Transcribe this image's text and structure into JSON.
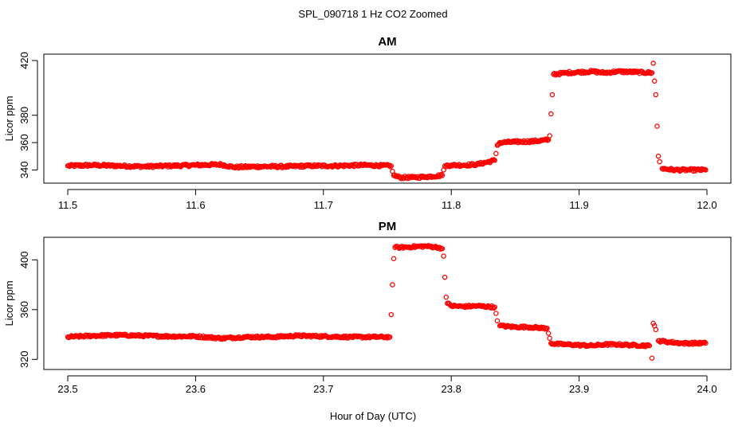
{
  "figure": {
    "title": "SPL_090718  1 Hz CO2 Zoomed",
    "xlabel": "Hour of Day (UTC)"
  },
  "colors": {
    "points": "#ff0000",
    "axis": "#000000",
    "background": "#ffffff"
  },
  "chart_data": [
    {
      "type": "scatter",
      "title": "AM",
      "xlabel": "",
      "ylabel": "Licor ppm",
      "xlim": [
        11.5,
        12.0
      ],
      "ylim": [
        335,
        420
      ],
      "x_ticks": [
        "11.5",
        "11.6",
        "11.7",
        "11.8",
        "11.9",
        "12.0"
      ],
      "y_ticks": [
        "340",
        "360",
        "380",
        "420"
      ],
      "grid": false,
      "legend": "none",
      "series": [
        {
          "x": [
            11.5,
            11.52,
            11.54,
            11.56,
            11.58,
            11.6,
            11.62,
            11.63,
            11.65,
            11.67,
            11.69,
            11.71,
            11.73,
            11.753,
            11.754,
            11.755,
            11.76,
            11.77,
            11.78,
            11.793,
            11.794,
            11.795,
            11.8,
            11.81,
            11.82,
            11.834,
            11.835,
            11.836,
            11.838,
            11.85,
            11.865,
            11.876,
            11.877,
            11.878,
            11.879,
            11.88,
            11.89,
            11.9,
            11.91,
            11.92,
            11.93,
            11.945,
            11.957,
            11.958,
            11.959,
            11.96,
            11.961,
            11.962,
            11.963,
            11.965,
            11.975,
            11.985,
            11.999
          ],
          "y": [
            343,
            343.5,
            343,
            342.5,
            343,
            343.5,
            344,
            342,
            342.5,
            342.5,
            343,
            343,
            343.5,
            343,
            339,
            336,
            334.5,
            334.5,
            335,
            336,
            340,
            343,
            343.5,
            343.5,
            344,
            347,
            352,
            358,
            360,
            360.5,
            361,
            362,
            365,
            381,
            395,
            410,
            411,
            411.5,
            412,
            411,
            412,
            411.5,
            411,
            418,
            405,
            395,
            372,
            350,
            346,
            341,
            340,
            340,
            340
          ]
        }
      ]
    },
    {
      "type": "scatter",
      "title": "PM",
      "xlabel": "Hour of Day (UTC)",
      "ylabel": "Licor ppm",
      "xlim": [
        23.5,
        24.0
      ],
      "ylim": [
        317,
        413
      ],
      "x_ticks": [
        "23.5",
        "23.6",
        "23.7",
        "23.8",
        "23.9",
        "24.0"
      ],
      "y_ticks": [
        "320",
        "360",
        "400"
      ],
      "grid": false,
      "legend": "none",
      "series": [
        {
          "x": [
            23.5,
            23.52,
            23.54,
            23.56,
            23.58,
            23.6,
            23.62,
            23.64,
            23.66,
            23.68,
            23.7,
            23.72,
            23.74,
            23.752,
            23.753,
            23.754,
            23.755,
            23.756,
            23.76,
            23.77,
            23.78,
            23.79,
            23.793,
            23.794,
            23.795,
            23.796,
            23.797,
            23.8,
            23.81,
            23.82,
            23.834,
            23.835,
            23.836,
            23.838,
            23.85,
            23.86,
            23.875,
            23.876,
            23.877,
            23.878,
            23.88,
            23.89,
            23.9,
            23.91,
            23.92,
            23.93,
            23.94,
            23.955,
            23.957,
            23.958,
            23.959,
            23.96,
            23.962,
            23.97,
            23.98,
            23.999
          ],
          "y": [
            338,
            339,
            339.5,
            339,
            338.5,
            338.5,
            337,
            338,
            338,
            339,
            338.5,
            338,
            338,
            338,
            356,
            380,
            401,
            410,
            410,
            410.5,
            411,
            410,
            409,
            403,
            386,
            370,
            365,
            363,
            362.5,
            363,
            362,
            357,
            351,
            347,
            346,
            346,
            345,
            341,
            337,
            333,
            332.5,
            332,
            331.5,
            331,
            332,
            332,
            331.5,
            331,
            321,
            349,
            347,
            344,
            335,
            334,
            333,
            333
          ]
        }
      ]
    }
  ]
}
